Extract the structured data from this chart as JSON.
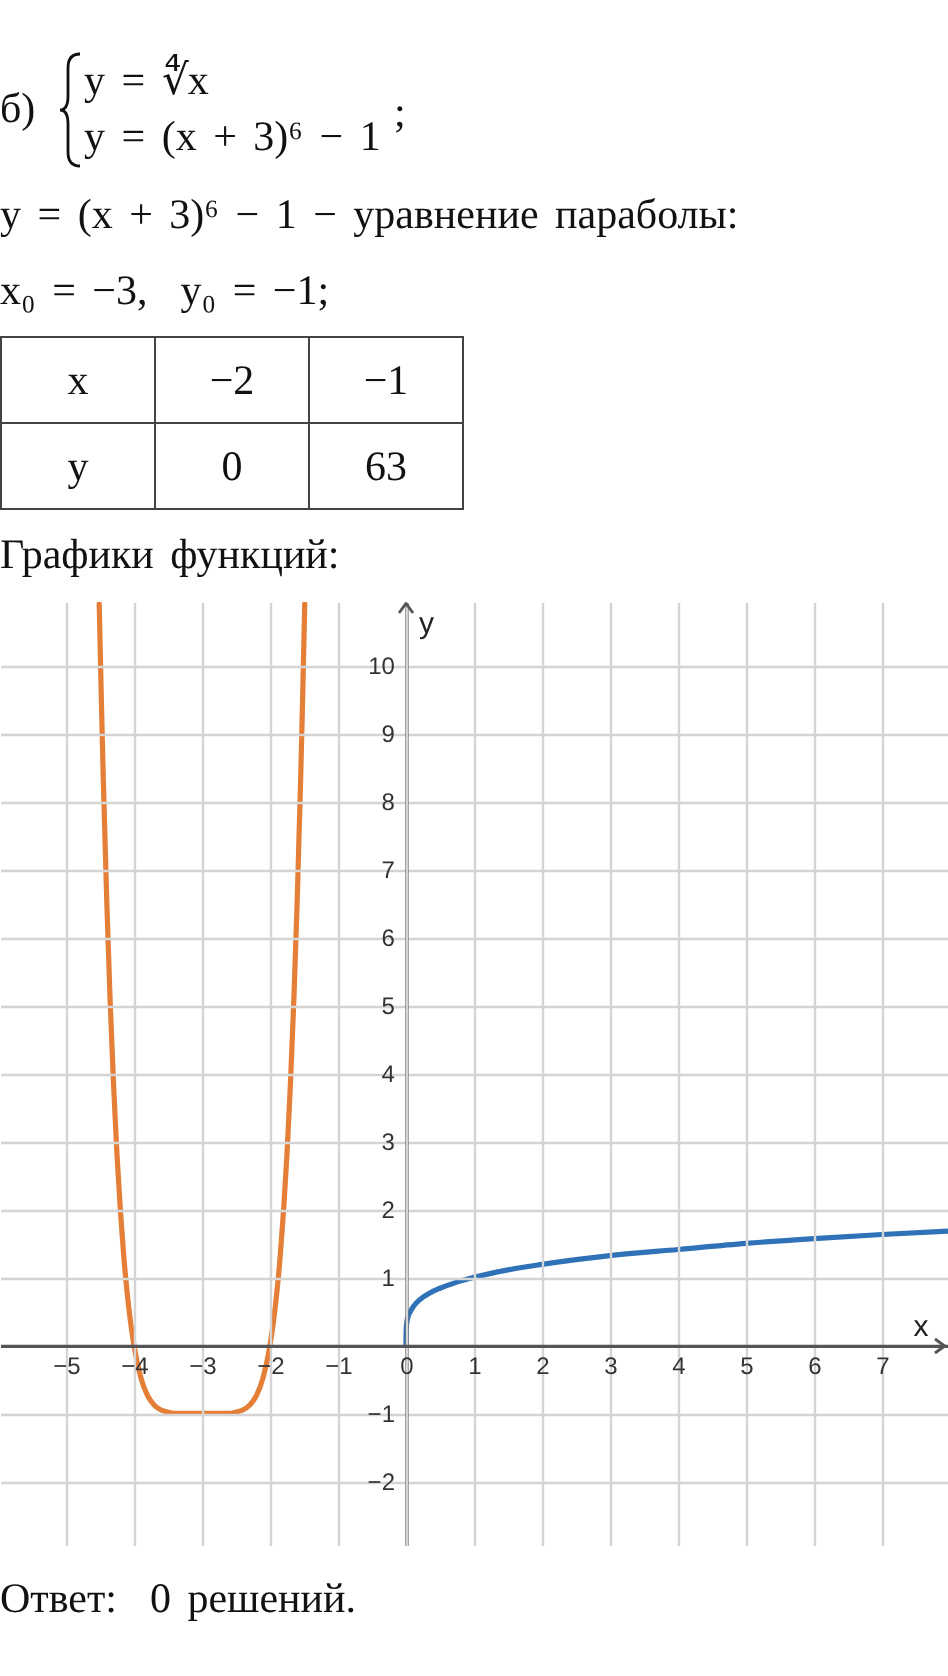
{
  "chart_data": {
    "type": "line",
    "title": "Графики функций:",
    "xlabel": "x",
    "ylabel": "y",
    "annotations": [
      "б)",
      "y = ∜x",
      "y = (x + 3)⁶ − 1",
      ";",
      "y = (x + 3)⁶ − 1 − уравнение параболы:",
      "x₀ = −3,  y₀ = −1;",
      "x",
      "−2",
      "−1",
      "y",
      "0",
      "63",
      "Ответ:  0 решений."
    ],
    "xlim": [
      -5.97,
      7.97
    ],
    "ylim": [
      -2.95,
      10.93
    ],
    "xticks": [
      -5,
      -4,
      -3,
      -2,
      -1,
      0,
      1,
      2,
      3,
      4,
      5,
      6,
      7
    ],
    "yticks": [
      -2,
      -1,
      1,
      2,
      3,
      4,
      5,
      6,
      7,
      8,
      9,
      10
    ],
    "grid": true,
    "line_style": "solid",
    "series": [
      {
        "color": "#2f72b8",
        "x": [
          0,
          0.002,
          0.01,
          0.03,
          0.06,
          0.1,
          0.2,
          0.35,
          0.5,
          0.75,
          1,
          1.5,
          2,
          2.5,
          3,
          4,
          5,
          6,
          7,
          7.97
        ],
        "values": [
          0,
          0.21,
          0.32,
          0.42,
          0.49,
          0.56,
          0.67,
          0.77,
          0.84,
          0.93,
          1,
          1.11,
          1.19,
          1.26,
          1.32,
          1.41,
          1.5,
          1.57,
          1.63,
          1.68
        ]
      },
      {
        "color": "#e57e36",
        "x": [
          -4.511,
          -4.48,
          -4.45,
          -4.4,
          -4.35,
          -4.3,
          -4.25,
          -4.2,
          -4.15,
          -4.1,
          -4.05,
          -4,
          -3.9,
          -3.8,
          -3.7,
          -3.6,
          -3.5,
          -3.4,
          -3.2,
          -3,
          -2.8,
          -2.6,
          -2.5,
          -2.4,
          -2.3,
          -2.2,
          -2.1,
          -2,
          -1.95,
          -1.9,
          -1.85,
          -1.8,
          -1.75,
          -1.7,
          -1.65,
          -1.6,
          -1.55,
          -1.52,
          -1.489
        ],
        "values": [
          10.9,
          9.51,
          8.29,
          6.53,
          5.05,
          3.83,
          2.81,
          1.99,
          1.31,
          0.77,
          0.34,
          0,
          -0.47,
          -0.74,
          -0.88,
          -0.95,
          -0.98,
          -1,
          -1,
          -1,
          -1,
          -1,
          -0.98,
          -0.95,
          -0.88,
          -0.74,
          -0.47,
          0,
          0.34,
          0.77,
          1.31,
          1.99,
          2.81,
          3.83,
          5.05,
          6.53,
          8.29,
          9.51,
          10.9
        ]
      }
    ]
  }
}
